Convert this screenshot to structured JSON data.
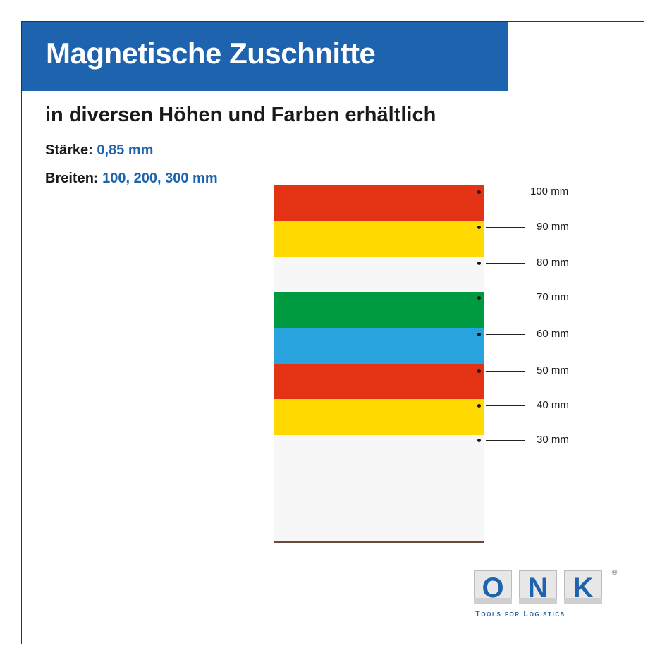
{
  "header": {
    "title": "Magnetische Zuschnitte",
    "subtitle": "in diversen Höhen und Farben erhältlich"
  },
  "specs": {
    "thickness_label": "Stärke:",
    "thickness_value": "0,85 mm",
    "widths_label": "Breiten:",
    "widths_value": "100, 200, 300 mm"
  },
  "diagram": {
    "strips": [
      {
        "height": "100 mm",
        "color": "#e33214"
      },
      {
        "height": "90 mm",
        "color": "#ffd900"
      },
      {
        "height": "80 mm",
        "color": "#f7f7f7"
      },
      {
        "height": "70 mm",
        "color": "#009a40"
      },
      {
        "height": "60 mm",
        "color": "#28a3dd"
      },
      {
        "height": "50 mm",
        "color": "#e33214"
      },
      {
        "height": "40 mm",
        "color": "#ffd900"
      },
      {
        "height": "30 mm",
        "color": "#f7f7f7"
      }
    ]
  },
  "brand": {
    "letters": [
      "O",
      "N",
      "K"
    ],
    "registered": "®",
    "tagline": "Tools for Logistics",
    "color": "#1e63ad"
  }
}
